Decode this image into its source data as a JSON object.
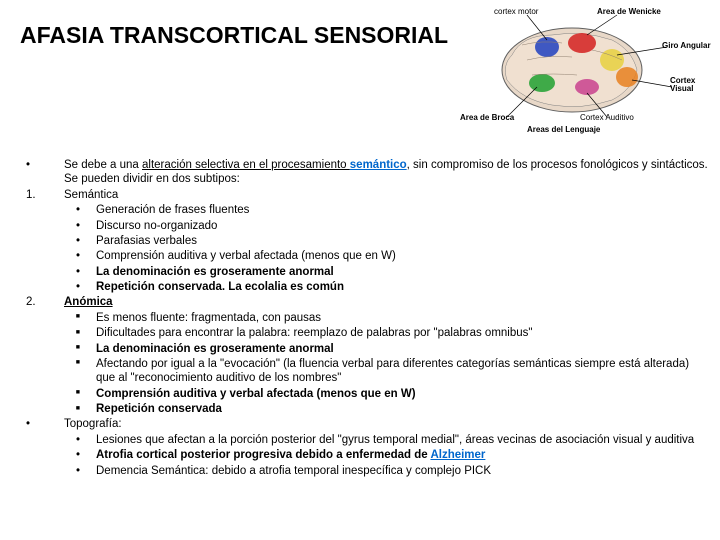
{
  "title": "AFASIA TRANSCORTICAL SENSORIAL",
  "brain_labels": {
    "cortex_motor": "cortex motor",
    "area_wernicke": "Area de Wenicke",
    "giro_angular": "Giro Angular",
    "cortex_visual": "Cortex Visual",
    "cortex_auditivo": "Cortex Auditivo",
    "area_broca": "Area de Broca",
    "areas_lenguaje": "Areas del Lenguaje"
  },
  "brain_colors": {
    "red": "#d42020",
    "blue": "#2040c0",
    "green": "#20a030",
    "yellow": "#e8d040",
    "orange": "#e88020",
    "outline": "#404040"
  },
  "intro_prefix": "Se debe a una ",
  "intro_underline": "alteración selectiva en el procesamiento ",
  "intro_link": "semántico",
  "intro_suffix": ", sin compromiso de los procesos fonológicos y sintácticos. Se pueden dividir en dos subtipos:",
  "section1_title": "Semántica",
  "section1_items": [
    {
      "text": "Generación de frases fluentes",
      "bold": false
    },
    {
      "text": "Discurso no-organizado",
      "bold": false
    },
    {
      "text": "Parafasias verbales",
      "bold": false
    },
    {
      "text": "Comprensión auditiva y verbal afectada (menos que en W)",
      "bold": false
    },
    {
      "text": "La denominación es groseramente anormal",
      "bold": true
    },
    {
      "text": "Repetición conservada. La ecolalia es común",
      "bold": true
    }
  ],
  "section2_title": "Anómica",
  "section2_items": [
    {
      "text": "Es menos fluente: fragmentada, con pausas",
      "bold": false
    },
    {
      "text": "Dificultades para encontrar la palabra: reemplazo de palabras por \"palabras omnibus\"",
      "bold": false
    },
    {
      "text": "La denominación es groseramente anormal",
      "bold": true
    },
    {
      "text": "Afectando por igual a la \"evocación\" (la fluencia verbal para diferentes categorías semánticas siempre está alterada) que al \"reconocimiento auditivo de los nombres\"",
      "bold": false
    },
    {
      "text": "Comprensión auditiva y verbal afectada (menos que en W)",
      "bold": true
    },
    {
      "text": "Repetición conservada",
      "bold": true
    }
  ],
  "section3_title": "Topografía:",
  "section3_items": [
    {
      "prefix": "Lesiones que afectan a la porción posterior del \"gyrus temporal medial\", áreas vecinas de asociación visual y auditiva",
      "bold_part": "",
      "link": ""
    },
    {
      "prefix": "",
      "bold_part": "Atrofia cortical posterior progresiva debido a enfermedad de ",
      "link": "Alzheimer"
    },
    {
      "prefix": "Demencia Semántica: debido a atrofia temporal inespecífica y complejo PICK",
      "bold_part": "",
      "link": ""
    }
  ]
}
